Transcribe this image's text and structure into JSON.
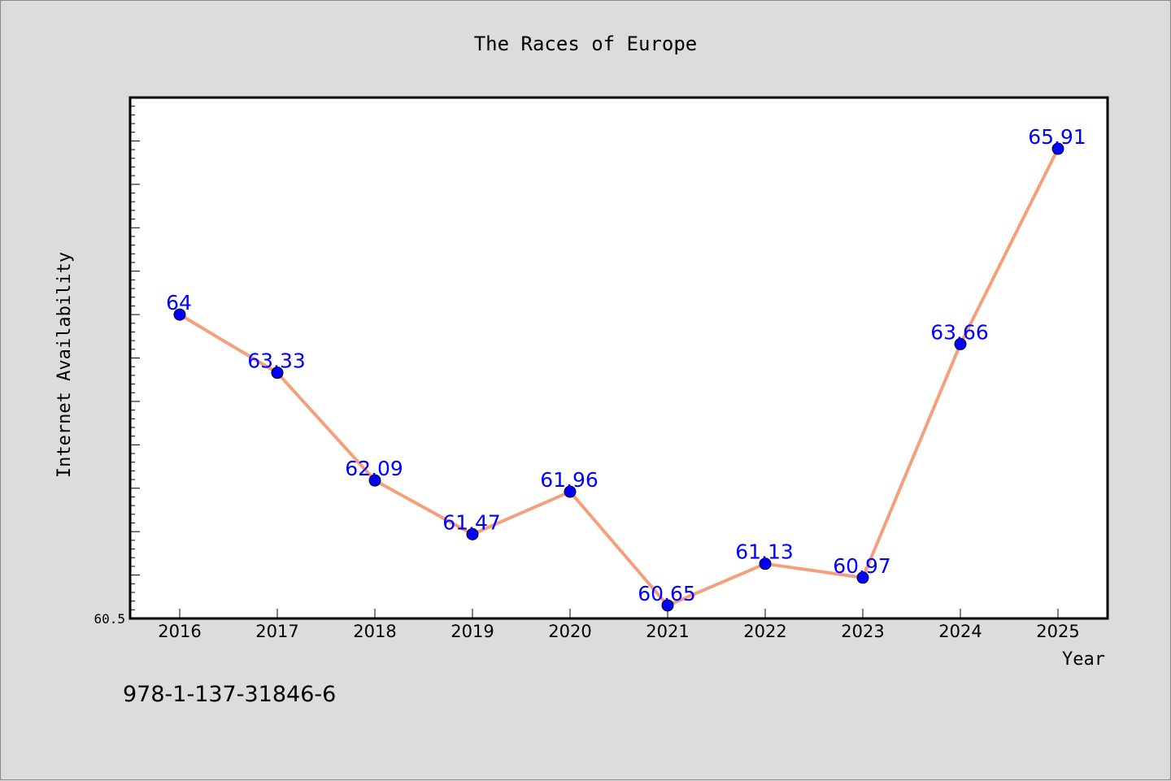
{
  "chart_data": {
    "type": "line",
    "title": "The Races of Europe",
    "xlabel": "Year",
    "ylabel": "Internet Availability",
    "x": [
      "2016",
      "2017",
      "2018",
      "2019",
      "2020",
      "2021",
      "2022",
      "2023",
      "2024",
      "2025"
    ],
    "series": [
      {
        "values": [
          64,
          63.33,
          62.09,
          61.47,
          61.96,
          60.65,
          61.13,
          60.97,
          63.66,
          65.91
        ]
      }
    ],
    "data_labels": [
      "64",
      "63.33",
      "62.09",
      "61.47",
      "61.96",
      "60.65",
      "61.13",
      "60.97",
      "63.66",
      "65.91"
    ],
    "ytick_labels": [
      "60.5"
    ],
    "ylim": [
      60.5,
      66.5
    ],
    "yminor_step": 0.1,
    "ymajor_step": 0.5,
    "grid": false,
    "colors": {
      "line": "#f4a07c",
      "marker": "#0000ff",
      "data_label": "#0000ff",
      "plot_bg": "#ffffff",
      "page_bg": "#dcdcdc"
    }
  },
  "footer": {
    "isbn": "978-1-137-31846-6"
  }
}
